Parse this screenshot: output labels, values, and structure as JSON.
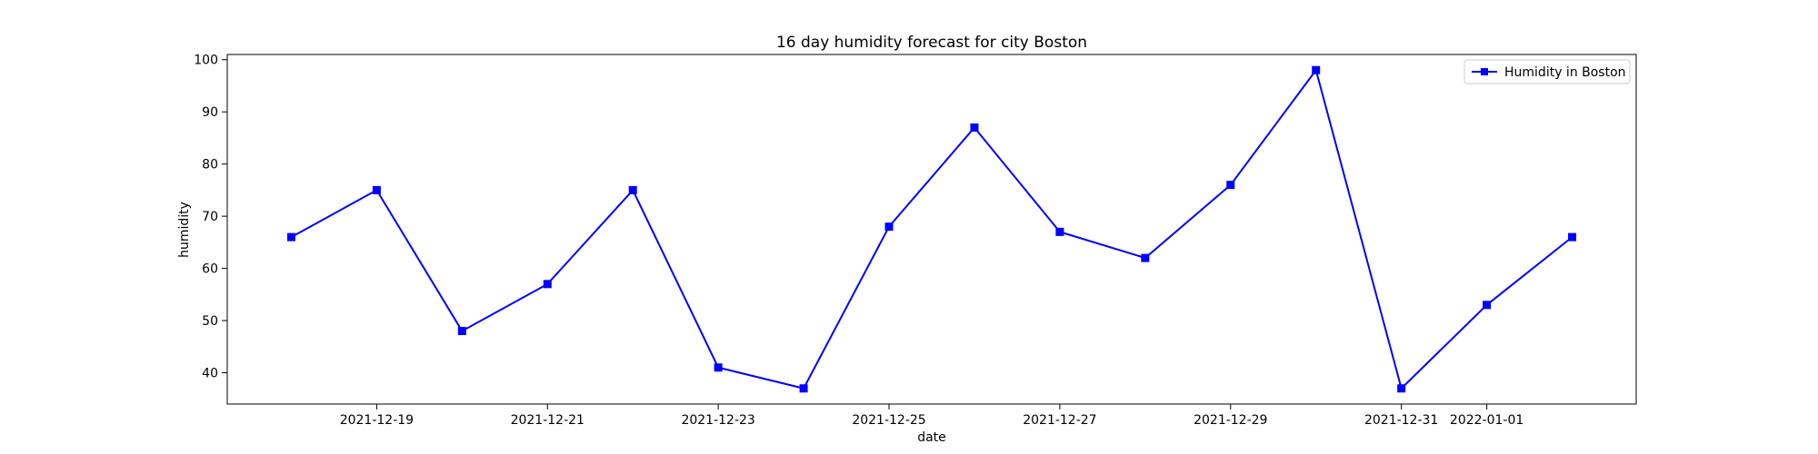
{
  "chart_data": {
    "type": "line",
    "title": "16 day humidity forecast for city Boston",
    "xlabel": "date",
    "ylabel": "humidity",
    "x": [
      "2021-12-18",
      "2021-12-19",
      "2021-12-20",
      "2021-12-21",
      "2021-12-22",
      "2021-12-23",
      "2021-12-24",
      "2021-12-25",
      "2021-12-26",
      "2021-12-27",
      "2021-12-28",
      "2021-12-29",
      "2021-12-30",
      "2021-12-31",
      "2022-01-01",
      "2022-01-02"
    ],
    "series": [
      {
        "name": "Humidity in Boston",
        "values": [
          66,
          75,
          48,
          57,
          75,
          41,
          37,
          68,
          87,
          67,
          62,
          76,
          98,
          37,
          53,
          66
        ],
        "color": "#0000ff",
        "marker": "square"
      }
    ],
    "x_ticks": [
      "2021-12-19",
      "2021-12-21",
      "2021-12-23",
      "2021-12-25",
      "2021-12-27",
      "2021-12-29",
      "2021-12-31",
      "2022-01-01"
    ],
    "y_ticks": [
      40,
      50,
      60,
      70,
      80,
      90,
      100
    ],
    "xlim": [
      "2021-12-17T06:00",
      "2022-01-02T18:00"
    ],
    "ylim": [
      34,
      101
    ],
    "grid": false,
    "legend": "top-right"
  }
}
